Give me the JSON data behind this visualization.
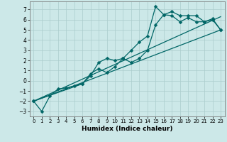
{
  "xlabel": "Humidex (Indice chaleur)",
  "background_color": "#cce8e8",
  "line_color": "#006666",
  "xlim": [
    -0.5,
    23.5
  ],
  "ylim": [
    -3.5,
    7.8
  ],
  "yticks": [
    -3,
    -2,
    -1,
    0,
    1,
    2,
    3,
    4,
    5,
    6,
    7
  ],
  "xticks": [
    0,
    1,
    2,
    3,
    4,
    5,
    6,
    7,
    8,
    9,
    10,
    11,
    12,
    13,
    14,
    15,
    16,
    17,
    18,
    19,
    20,
    21,
    22,
    23
  ],
  "series1_x": [
    0,
    1,
    2,
    3,
    4,
    5,
    6,
    7,
    8,
    9,
    10,
    11,
    12,
    13,
    14,
    15,
    16,
    17,
    18,
    19,
    20,
    21,
    22,
    23
  ],
  "series1_y": [
    -2.0,
    -3.0,
    -1.5,
    -0.8,
    -0.7,
    -0.5,
    -0.3,
    0.5,
    1.8,
    2.2,
    2.0,
    2.2,
    3.0,
    3.8,
    4.4,
    7.3,
    6.5,
    6.8,
    6.4,
    6.4,
    6.4,
    5.8,
    6.1,
    5.0
  ],
  "series2_x": [
    0,
    6,
    7,
    8,
    9,
    10,
    11,
    12,
    13,
    14,
    15,
    16,
    17,
    18,
    19,
    20,
    21,
    22,
    23
  ],
  "series2_y": [
    -2.0,
    -0.3,
    0.7,
    1.2,
    0.8,
    1.4,
    2.2,
    1.8,
    2.2,
    3.0,
    5.5,
    6.5,
    6.4,
    5.8,
    6.2,
    5.8,
    5.8,
    6.0,
    5.0
  ],
  "series3_x": [
    0,
    23
  ],
  "series3_y": [
    -2.0,
    6.3
  ],
  "series4_x": [
    0,
    23
  ],
  "series4_y": [
    -2.0,
    5.0
  ],
  "markersize": 2.5,
  "linewidth": 0.9
}
